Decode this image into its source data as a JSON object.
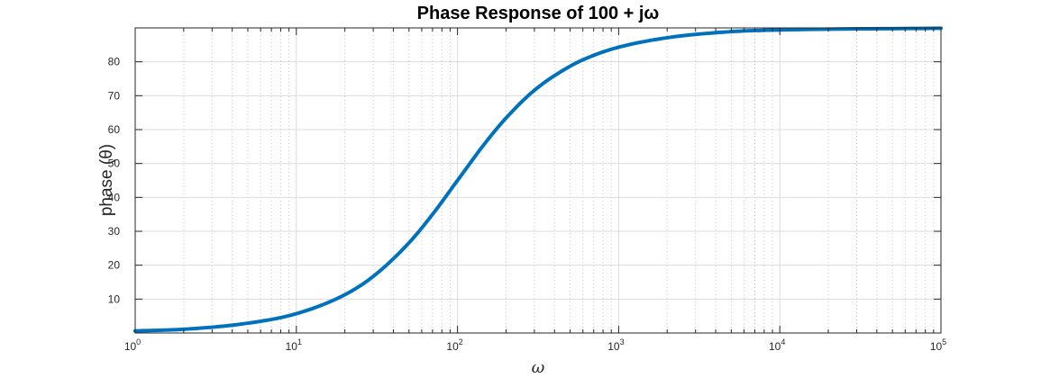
{
  "chart_data": {
    "type": "line",
    "title": "Phase Response of 100 + jω",
    "xlabel": "ω",
    "ylabel": "phase (θ)",
    "xscale": "log",
    "xlim": [
      1,
      100000
    ],
    "ylim": [
      0,
      90
    ],
    "grid": true,
    "minor_grid": true,
    "legend": "none",
    "line_color": "#0072BD",
    "xtick_labels": [
      {
        "base": "10",
        "exp": "0"
      },
      {
        "base": "10",
        "exp": "1"
      },
      {
        "base": "10",
        "exp": "2"
      },
      {
        "base": "10",
        "exp": "3"
      },
      {
        "base": "10",
        "exp": "4"
      },
      {
        "base": "10",
        "exp": "5"
      }
    ],
    "xticks": [
      1,
      10,
      100,
      1000,
      10000,
      100000
    ],
    "yticks": [
      10,
      20,
      30,
      40,
      50,
      60,
      70,
      80
    ],
    "x": [
      1,
      2,
      5,
      10,
      20,
      30,
      50,
      70,
      100,
      150,
      200,
      300,
      500,
      700,
      1000,
      2000,
      5000,
      10000,
      100000
    ],
    "y": [
      0.6,
      1.1,
      2.9,
      5.7,
      11.3,
      16.7,
      26.6,
      35.0,
      45.0,
      56.3,
      63.4,
      71.6,
      78.7,
      81.9,
      84.3,
      87.1,
      88.9,
      89.4,
      89.9
    ]
  }
}
